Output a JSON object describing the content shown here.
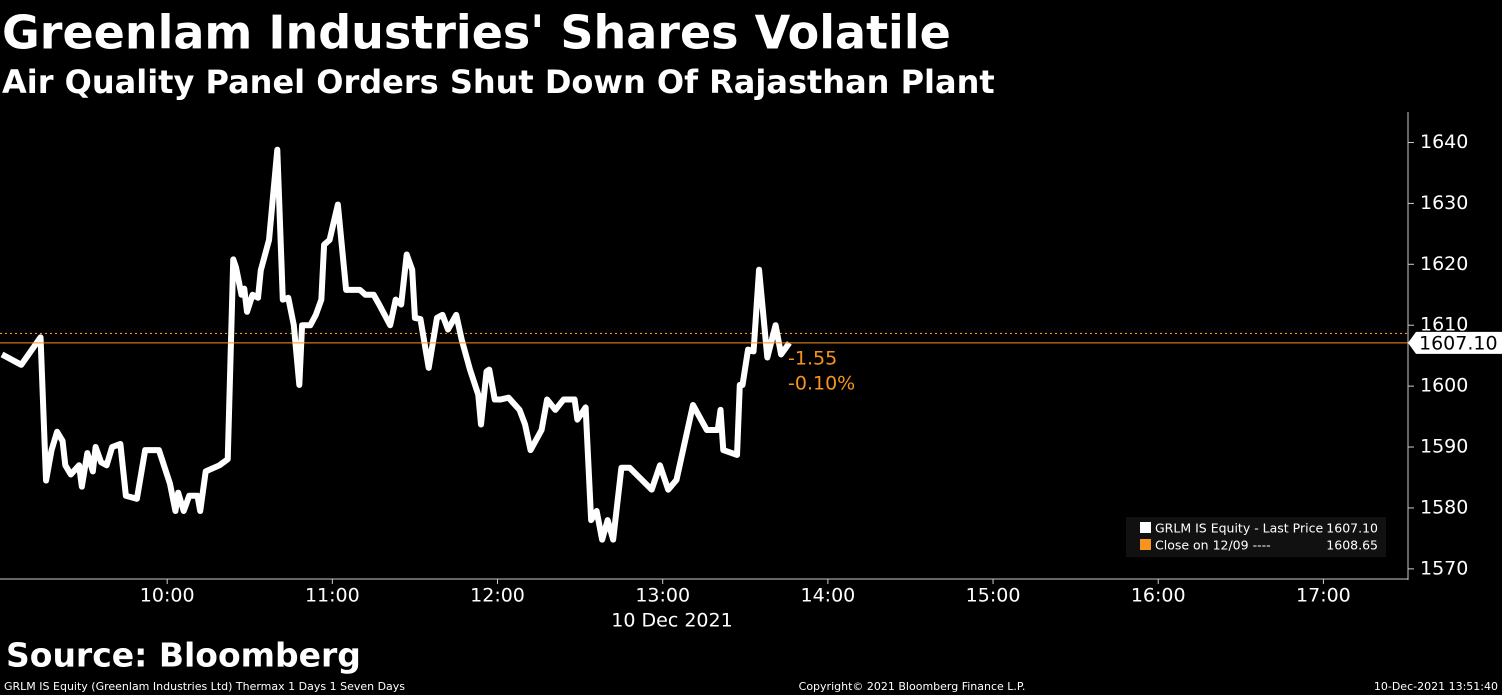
{
  "chart_data": {
    "type": "line",
    "title": "Greenlam Industries' Shares Volatile",
    "subtitle": "Air Quality Panel Orders Shut Down Of Rajasthan Plant",
    "x_label": "10 Dec 2021",
    "xlim": [
      "09:00",
      "17:30"
    ],
    "xticks": [
      "10:00",
      "11:00",
      "12:00",
      "13:00",
      "14:00",
      "15:00",
      "16:00",
      "17:00"
    ],
    "ylim": [
      1568.5,
      1645
    ],
    "yticks": [
      1570,
      1580,
      1590,
      1600,
      1610,
      1620,
      1630,
      1640
    ],
    "x": [
      "09:00",
      "09:07",
      "09:14",
      "09:16",
      "09:18",
      "09:20",
      "09:22",
      "09:23",
      "09:25",
      "09:28",
      "09:29",
      "09:31",
      "09:33",
      "09:34",
      "09:36",
      "09:38",
      "09:40",
      "09:43",
      "09:45",
      "09:49",
      "09:52",
      "09:57",
      "10:01",
      "10:03",
      "10:04",
      "10:06",
      "10:08",
      "10:11",
      "10:12",
      "10:14",
      "10:19",
      "10:22",
      "10:24",
      "10:25",
      "10:27",
      "10:28",
      "10:29",
      "10:31",
      "10:33",
      "10:34",
      "10:37",
      "10:40",
      "10:42",
      "10:44",
      "10:46",
      "10:48",
      "10:49",
      "10:52",
      "10:54",
      "10:56",
      "10:57",
      "10:59",
      "11:02",
      "11:05",
      "11:10",
      "11:12",
      "11:15",
      "11:17",
      "11:19",
      "11:21",
      "11:23",
      "11:25",
      "11:27",
      "11:29",
      "11:30",
      "11:32",
      "11:35",
      "11:38",
      "11:40",
      "11:42",
      "11:45",
      "11:47",
      "11:50",
      "11:53",
      "11:54",
      "11:56",
      "11:57",
      "11:59",
      "12:01",
      "12:04",
      "12:08",
      "12:10",
      "12:12",
      "12:16",
      "12:18",
      "12:21",
      "12:24",
      "12:28",
      "12:29",
      "12:32",
      "12:34",
      "12:36",
      "12:38",
      "12:40",
      "12:42",
      "12:45",
      "12:48",
      "12:56",
      "12:59",
      "13:02",
      "13:05",
      "13:11",
      "13:16",
      "13:20",
      "13:21",
      "13:22",
      "13:27",
      "13:28",
      "13:29",
      "13:31",
      "13:33",
      "13:35",
      "13:38",
      "13:41",
      "13:43",
      "13:46"
    ],
    "series": [
      {
        "name": "GRLM IS Equity - Last Price",
        "color": "#ffffff",
        "values": [
          1605.2,
          1603.5,
          1608,
          1584.5,
          1589.5,
          1592.5,
          1591,
          1587,
          1585.5,
          1587,
          1583.5,
          1589,
          1586,
          1590,
          1587.5,
          1587,
          1590,
          1590.5,
          1582,
          1581.5,
          1589.5,
          1589.5,
          1584,
          1579.5,
          1582.5,
          1579.5,
          1582,
          1582,
          1579.5,
          1586,
          1587,
          1588,
          1620.8,
          1619.5,
          1615,
          1616,
          1612.2,
          1615,
          1614.5,
          1619,
          1624,
          1638.8,
          1614.2,
          1614.5,
          1610,
          1600.2,
          1610,
          1610,
          1611.7,
          1614.2,
          1623.2,
          1624,
          1629.8,
          1615.8,
          1615.8,
          1615,
          1615,
          1613.4,
          1611.7,
          1610,
          1614.2,
          1613.4,
          1621.6,
          1619.1,
          1611.2,
          1611,
          1603,
          1611.2,
          1611.7,
          1609.3,
          1611.7,
          1607.6,
          1602.7,
          1598.6,
          1593.7,
          1602.4,
          1602.7,
          1597.8,
          1597.8,
          1598.1,
          1596.1,
          1593.7,
          1589.5,
          1592.8,
          1597.8,
          1596.1,
          1597.8,
          1597.8,
          1594.5,
          1596.5,
          1578,
          1579.5,
          1574.8,
          1578,
          1574.8,
          1586.6,
          1586.6,
          1583,
          1587,
          1583,
          1584.6,
          1596.9,
          1592.8,
          1592.8,
          1596.1,
          1589.5,
          1588.7,
          1600.2,
          1600.2,
          1606,
          1605.7,
          1619.1,
          1604.7,
          1610,
          1605.2,
          1607.1
        ],
        "last_value": {
          "value": 1607.1,
          "label": "1607.10"
        }
      }
    ],
    "reference_line": {
      "name": "Close on 12/09 ----",
      "value": 1608.65,
      "color": "#f7941d"
    },
    "change": -1.55,
    "change_pct": {
      "value": -0.1,
      "label": "-0.10%"
    },
    "source": "Source: Bloomberg",
    "footnote": "GRLM IS Equity (Greenlam Industries Ltd) Thermax 1 Days 1 Seven Days",
    "copyright": "Copyright© 2021 Bloomberg Finance L.P.",
    "timestamp": "10-Dec-2021 13:51:40"
  }
}
